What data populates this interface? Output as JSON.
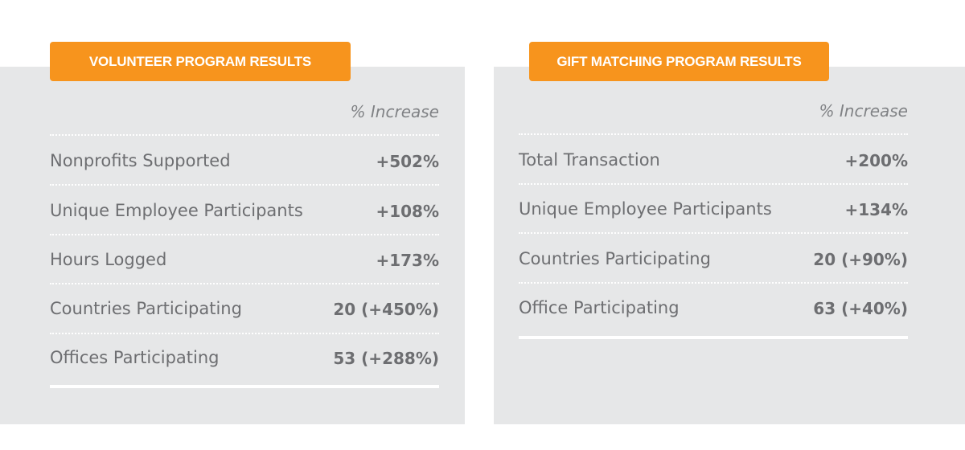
{
  "volunteer": {
    "title": "VOLUNTEER PROGRAM RESULTS",
    "column_header": "% Increase",
    "rows": [
      {
        "label": "Nonprofits Supported",
        "value": "+502%"
      },
      {
        "label": "Unique Employee Participants",
        "value": "+108%"
      },
      {
        "label": "Hours Logged",
        "value": "+173%"
      },
      {
        "label": "Countries Participating",
        "value": "20 (+450%)"
      },
      {
        "label": "Offices Participating",
        "value": "53 (+288%)"
      }
    ]
  },
  "gift_matching": {
    "title": "GIFT MATCHING PROGRAM RESULTS",
    "column_header": "% Increase",
    "rows": [
      {
        "label": "Total Transaction",
        "value": "+200%"
      },
      {
        "label": "Unique Employee Participants",
        "value": "+134%"
      },
      {
        "label": "Countries Participating",
        "value": "20 (+90%)"
      },
      {
        "label": "Office Participating",
        "value": "63 (+40%)"
      }
    ]
  },
  "colors": {
    "accent": "#f7941d",
    "panel_background": "#e6e7e8",
    "text": "#6d6e71"
  }
}
